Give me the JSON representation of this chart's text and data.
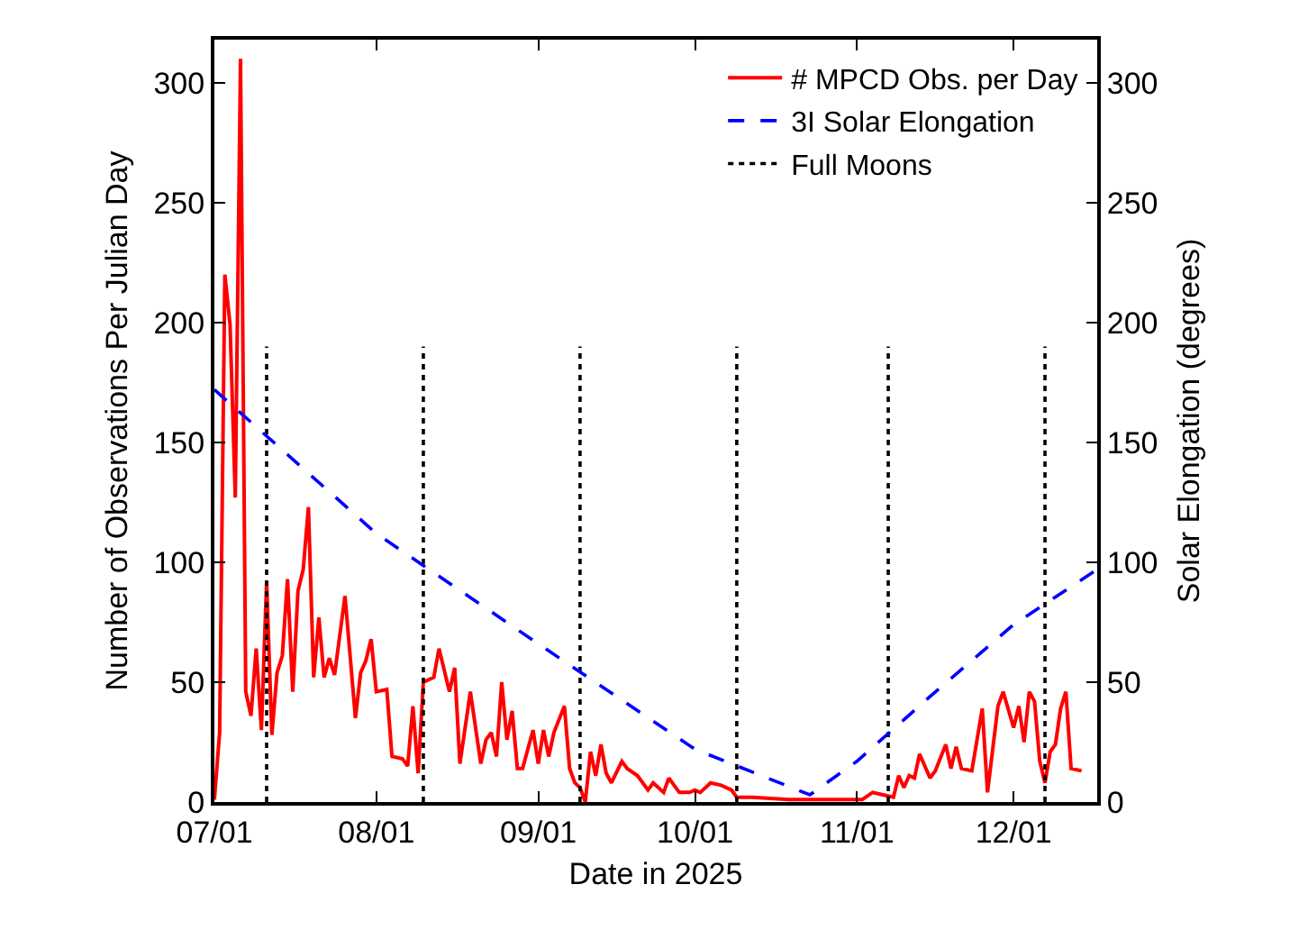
{
  "chart_data": {
    "type": "line",
    "xlabel": "Date in 2025",
    "ylabel": "Number of Observations Per Julian Day",
    "y2label": "Solar Elongation (degrees)",
    "xlim": [
      "2025-07-01",
      "2025-12-17"
    ],
    "xticks": [
      {
        "value": "2025-07-01",
        "label": "07/01"
      },
      {
        "value": "2025-08-01",
        "label": "08/01"
      },
      {
        "value": "2025-09-01",
        "label": "09/01"
      },
      {
        "value": "2025-10-01",
        "label": "10/01"
      },
      {
        "value": "2025-11-01",
        "label": "11/01"
      },
      {
        "value": "2025-12-01",
        "label": "12/01"
      }
    ],
    "ylim": [
      0,
      318
    ],
    "yticks": [
      0,
      50,
      100,
      150,
      200,
      250,
      300
    ],
    "y2lim": [
      0,
      318
    ],
    "y2ticks": [
      0,
      50,
      100,
      150,
      200,
      250,
      300
    ],
    "grid": false,
    "legend": "top right",
    "marker": "none",
    "series": [
      {
        "name": "# MPCD Obs. per Day",
        "color": "#ff0000",
        "line_style": "solid",
        "x": [
          "2025-07-01",
          "2025-07-02",
          "2025-07-03",
          "2025-07-04",
          "2025-07-05",
          "2025-07-06",
          "2025-07-07",
          "2025-07-08",
          "2025-07-09",
          "2025-07-10",
          "2025-07-11",
          "2025-07-12",
          "2025-07-13",
          "2025-07-14",
          "2025-07-15",
          "2025-07-16",
          "2025-07-17",
          "2025-07-18",
          "2025-07-19",
          "2025-07-20",
          "2025-07-21",
          "2025-07-22",
          "2025-07-23",
          "2025-07-24",
          "2025-07-26",
          "2025-07-28",
          "2025-07-29",
          "2025-07-30",
          "2025-07-31",
          "2025-08-01",
          "2025-08-03",
          "2025-08-04",
          "2025-08-06",
          "2025-08-07",
          "2025-08-08",
          "2025-08-09",
          "2025-08-10",
          "2025-08-12",
          "2025-08-13",
          "2025-08-15",
          "2025-08-16",
          "2025-08-17",
          "2025-08-19",
          "2025-08-21",
          "2025-08-22",
          "2025-08-23",
          "2025-08-24",
          "2025-08-25",
          "2025-08-26",
          "2025-08-27",
          "2025-08-28",
          "2025-08-29",
          "2025-08-31",
          "2025-09-01",
          "2025-09-02",
          "2025-09-03",
          "2025-09-04",
          "2025-09-06",
          "2025-09-07",
          "2025-09-08",
          "2025-09-09",
          "2025-09-10",
          "2025-09-11",
          "2025-09-12",
          "2025-09-13",
          "2025-09-14",
          "2025-09-15",
          "2025-09-17",
          "2025-09-18",
          "2025-09-20",
          "2025-09-22",
          "2025-09-23",
          "2025-09-25",
          "2025-09-26",
          "2025-09-28",
          "2025-09-30",
          "2025-10-01",
          "2025-10-02",
          "2025-10-04",
          "2025-10-06",
          "2025-10-08",
          "2025-10-09",
          "2025-10-12",
          "2025-10-19",
          "2025-10-29",
          "2025-11-02",
          "2025-11-04",
          "2025-11-06",
          "2025-11-08",
          "2025-11-09",
          "2025-11-10",
          "2025-11-11",
          "2025-11-12",
          "2025-11-13",
          "2025-11-15",
          "2025-11-16",
          "2025-11-18",
          "2025-11-19",
          "2025-11-20",
          "2025-11-21",
          "2025-11-23",
          "2025-11-25",
          "2025-11-26",
          "2025-11-28",
          "2025-11-29",
          "2025-12-01",
          "2025-12-02",
          "2025-12-03",
          "2025-12-04",
          "2025-12-05",
          "2025-12-06",
          "2025-12-07",
          "2025-12-08",
          "2025-12-09",
          "2025-12-10",
          "2025-12-11",
          "2025-12-12",
          "2025-12-14"
        ],
        "values": [
          1,
          29,
          220,
          199,
          127,
          310,
          46,
          36,
          64,
          30,
          92,
          28,
          54,
          61,
          93,
          46,
          88,
          97,
          123,
          52,
          77,
          52,
          60,
          53,
          86,
          35,
          54,
          59,
          68,
          46,
          47,
          19,
          18,
          15,
          40,
          12,
          50,
          52,
          64,
          46,
          56,
          16,
          46,
          16,
          26,
          29,
          19,
          50,
          26,
          38,
          14,
          14,
          30,
          16,
          30,
          19,
          29,
          40,
          14,
          8,
          6,
          0,
          21,
          11,
          24,
          12,
          8,
          17,
          14,
          11,
          5,
          8,
          4,
          10,
          4,
          4,
          5,
          4,
          8,
          7,
          5,
          2,
          2,
          1,
          1,
          1,
          4,
          3,
          2,
          11,
          6,
          11,
          10,
          20,
          10,
          13,
          24,
          14,
          23,
          14,
          13,
          39,
          4,
          40,
          46,
          31,
          40,
          25,
          46,
          42,
          17,
          8,
          21,
          24,
          39,
          46,
          14,
          13
        ]
      },
      {
        "name": "3I Solar Elongation",
        "color": "#0000ff",
        "line_style": "dashed",
        "axis": "y2",
        "x": [
          "2025-07-01",
          "2025-08-01",
          "2025-09-01",
          "2025-10-01",
          "2025-10-23",
          "2025-11-01",
          "2025-11-15",
          "2025-12-01",
          "2025-12-17"
        ],
        "values": [
          172,
          112,
          66,
          22,
          3,
          17,
          44,
          74,
          97
        ]
      },
      {
        "name": "Full Moons",
        "color": "#000000",
        "line_style": "dotted",
        "x": [
          "2025-07-11",
          "2025-07-11"
        ],
        "values": [
          0,
          190
        ]
      },
      {
        "color": "#000000",
        "line_style": "dotted",
        "x": [
          "2025-08-10",
          "2025-08-10"
        ],
        "values": [
          0,
          190
        ]
      },
      {
        "color": "#000000",
        "line_style": "dotted",
        "x": [
          "2025-09-09",
          "2025-09-09"
        ],
        "values": [
          0,
          190
        ]
      },
      {
        "color": "#000000",
        "line_style": "dotted",
        "x": [
          "2025-10-09",
          "2025-10-09"
        ],
        "values": [
          0,
          190
        ]
      },
      {
        "color": "#000000",
        "line_style": "dotted",
        "x": [
          "2025-11-07",
          "2025-11-07"
        ],
        "values": [
          0,
          190
        ]
      },
      {
        "color": "#000000",
        "line_style": "dotted",
        "x": [
          "2025-12-07",
          "2025-12-07"
        ],
        "values": [
          0,
          190
        ]
      }
    ]
  }
}
